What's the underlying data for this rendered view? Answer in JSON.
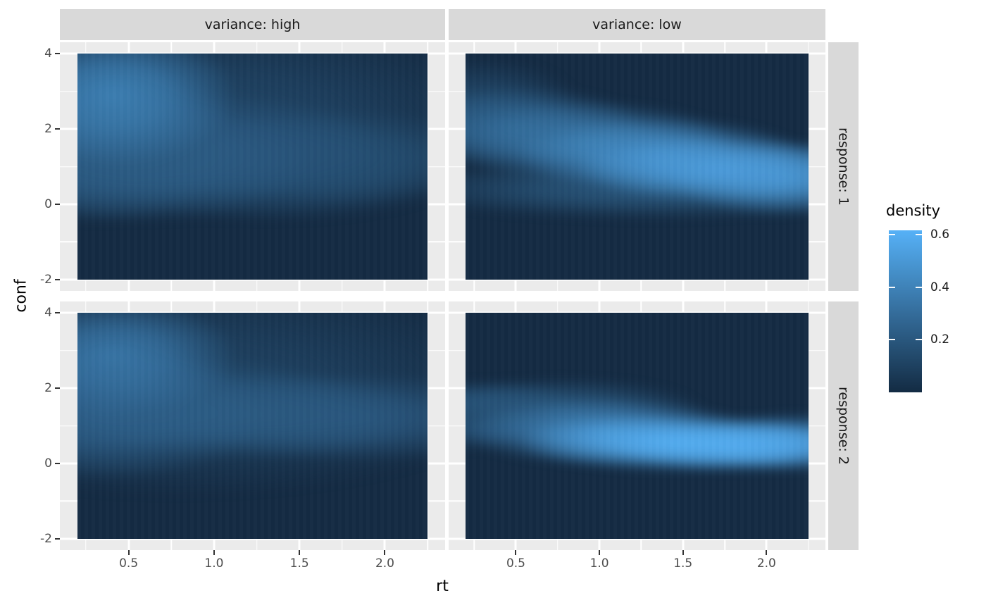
{
  "colors": {
    "background": "#FFFFFF",
    "panel_background": "#EBEBEB",
    "strip_background": "#D9D9D9",
    "gridline": "#FFFFFF",
    "tick_mark": "#333333",
    "tick_label": "#4D4D4D",
    "raster_base": "#142B43",
    "scale_low": "#132B43",
    "scale_high": "#56B1F7"
  },
  "chart_data": {
    "type": "heatmap",
    "title": "",
    "xlabel": "rt",
    "ylabel": "conf",
    "facet_col_labels": [
      "variance: high",
      "variance: low"
    ],
    "facet_row_labels": [
      "response: 1",
      "response: 2"
    ],
    "x_tick_labels": [
      "0.5",
      "1.0",
      "1.5",
      "2.0"
    ],
    "x_tick_values": [
      0.5,
      1.0,
      1.5,
      2.0
    ],
    "y_tick_labels": [
      "4",
      "2",
      "0",
      "-2"
    ],
    "y_tick_values": [
      4,
      2,
      0,
      -2
    ],
    "x_minor_ticks": [
      0.25,
      0.75,
      1.25,
      1.75,
      2.25
    ],
    "y_minor_ticks": [
      3,
      1,
      -1
    ],
    "x_domain": [
      0.0975,
      2.3525
    ],
    "y_domain": [
      -2.3,
      4.3
    ],
    "x_raster_range": [
      0.2,
      2.25
    ],
    "y_raster_range": [
      -2,
      4
    ],
    "grid": true,
    "legend": {
      "title": "density",
      "position": "right",
      "tick_labels": [
        "0.6",
        "0.4",
        "0.2"
      ],
      "tick_values": [
        0.6,
        0.4,
        0.2
      ],
      "range": [
        0,
        0.616
      ],
      "low_color": "#132B43",
      "high_color": "#56B1F7"
    },
    "facets": [
      {
        "variance": "high",
        "response": "1",
        "peaks": [
          {
            "rt": 0.9,
            "conf": 2.2,
            "density": 0.12,
            "spread_rt": 1.0,
            "spread_conf": 1.4
          },
          {
            "rt": 1.75,
            "conf": 1.25,
            "density": 0.15,
            "spread_rt": 0.45,
            "spread_conf": 0.65
          },
          {
            "rt": 1.35,
            "conf": 0.95,
            "density": 0.16,
            "spread_rt": 0.6,
            "spread_conf": 0.7
          },
          {
            "rt": 1.05,
            "conf": 1.5,
            "density": 0.19,
            "spread_rt": 0.5,
            "spread_conf": 0.7
          },
          {
            "rt": 0.35,
            "conf": 1.6,
            "density": 0.22,
            "spread_rt": 0.45,
            "spread_conf": 1.1
          },
          {
            "rt": 0.55,
            "conf": 1.1,
            "density": 0.22,
            "spread_rt": 0.55,
            "spread_conf": 0.8
          },
          {
            "rt": 0.45,
            "conf": 2.75,
            "density": 0.38,
            "spread_rt": 0.38,
            "spread_conf": 0.95
          }
        ]
      },
      {
        "variance": "low",
        "response": "1",
        "peaks": [
          {
            "rt": 0.35,
            "conf": 2.55,
            "density": 0.12,
            "spread_rt": 0.3,
            "spread_conf": 0.6
          },
          {
            "rt": 1.3,
            "conf": 0.45,
            "density": 0.2,
            "spread_rt": 0.8,
            "spread_conf": 0.4
          },
          {
            "rt": 0.55,
            "conf": 1.95,
            "density": 0.27,
            "spread_rt": 0.4,
            "spread_conf": 0.55
          },
          {
            "rt": 0.95,
            "conf": 1.6,
            "density": 0.33,
            "spread_rt": 0.45,
            "spread_conf": 0.55
          },
          {
            "rt": 1.35,
            "conf": 1.3,
            "density": 0.44,
            "spread_rt": 0.45,
            "spread_conf": 0.5
          },
          {
            "rt": 2.05,
            "conf": 0.7,
            "density": 0.45,
            "spread_rt": 0.35,
            "spread_conf": 0.5
          },
          {
            "rt": 1.7,
            "conf": 0.95,
            "density": 0.52,
            "spread_rt": 0.45,
            "spread_conf": 0.45
          }
        ]
      },
      {
        "variance": "high",
        "response": "2",
        "peaks": [
          {
            "rt": 0.8,
            "conf": 2.0,
            "density": 0.11,
            "spread_rt": 1.1,
            "spread_conf": 1.5
          },
          {
            "rt": 0.9,
            "conf": 1.6,
            "density": 0.17,
            "spread_rt": 0.5,
            "spread_conf": 0.6
          },
          {
            "rt": 1.8,
            "conf": 1.2,
            "density": 0.19,
            "spread_rt": 0.55,
            "spread_conf": 0.6
          },
          {
            "rt": 1.2,
            "conf": 1.25,
            "density": 0.21,
            "spread_rt": 0.55,
            "spread_conf": 0.6
          },
          {
            "rt": 0.4,
            "conf": 1.3,
            "density": 0.24,
            "spread_rt": 0.5,
            "spread_conf": 0.9
          },
          {
            "rt": 0.45,
            "conf": 2.7,
            "density": 0.34,
            "spread_rt": 0.38,
            "spread_conf": 0.8
          }
        ]
      },
      {
        "variance": "low",
        "response": "2",
        "peaks": [
          {
            "rt": 0.3,
            "conf": 0.95,
            "density": 0.14,
            "spread_rt": 0.28,
            "spread_conf": 0.3
          },
          {
            "rt": 0.35,
            "conf": 1.6,
            "density": 0.17,
            "spread_rt": 0.3,
            "spread_conf": 0.28
          },
          {
            "rt": 0.8,
            "conf": 1.35,
            "density": 0.2,
            "spread_rt": 0.45,
            "spread_conf": 0.45
          },
          {
            "rt": 1.05,
            "conf": 0.85,
            "density": 0.4,
            "spread_rt": 0.45,
            "spread_conf": 0.45
          },
          {
            "rt": 2.1,
            "conf": 0.6,
            "density": 0.42,
            "spread_rt": 0.3,
            "spread_conf": 0.4
          },
          {
            "rt": 1.8,
            "conf": 0.5,
            "density": 0.56,
            "spread_rt": 0.4,
            "spread_conf": 0.35
          },
          {
            "rt": 1.45,
            "conf": 0.6,
            "density": 0.6,
            "spread_rt": 0.5,
            "spread_conf": 0.4
          }
        ]
      }
    ]
  }
}
